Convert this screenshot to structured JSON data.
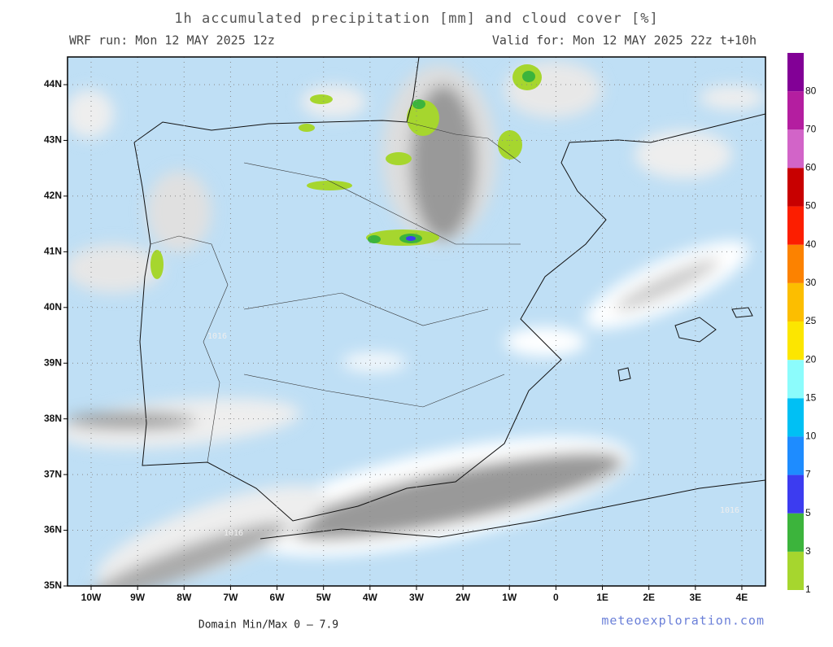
{
  "header": {
    "title": "1h accumulated precipitation [mm] and cloud cover [%]",
    "run": "WRF run: Mon 12 MAY 2025 12z",
    "valid": "Valid for: Mon 12 MAY 2025 22z  t+10h"
  },
  "map": {
    "lat_labels": [
      "35N",
      "36N",
      "37N",
      "38N",
      "39N",
      "40N",
      "41N",
      "42N",
      "43N",
      "44N"
    ],
    "lon_labels": [
      "10W",
      "9W",
      "8W",
      "7W",
      "6W",
      "5W",
      "4W",
      "3W",
      "2W",
      "1W",
      "0",
      "1E",
      "2E",
      "3E",
      "4E"
    ],
    "isobar_labels": [
      "1016",
      "1016",
      "1016"
    ]
  },
  "colorbar": {
    "labels": [
      "1",
      "3",
      "5",
      "7",
      "10",
      "15",
      "20",
      "25",
      "30",
      "40",
      "50",
      "60",
      "70",
      "80"
    ],
    "colors": [
      "#a6d62e",
      "#3cb43c",
      "#3c3cf0",
      "#1e8cff",
      "#00c0f4",
      "#8cfcfc",
      "#fce600",
      "#fcbe00",
      "#fc8200",
      "#fc1e00",
      "#c80000",
      "#d264c8",
      "#b41ea0",
      "#820096"
    ]
  },
  "footer": {
    "minmax": "Domain Min/Max 0 — 7.9",
    "credit": "meteoexploration.com"
  }
}
